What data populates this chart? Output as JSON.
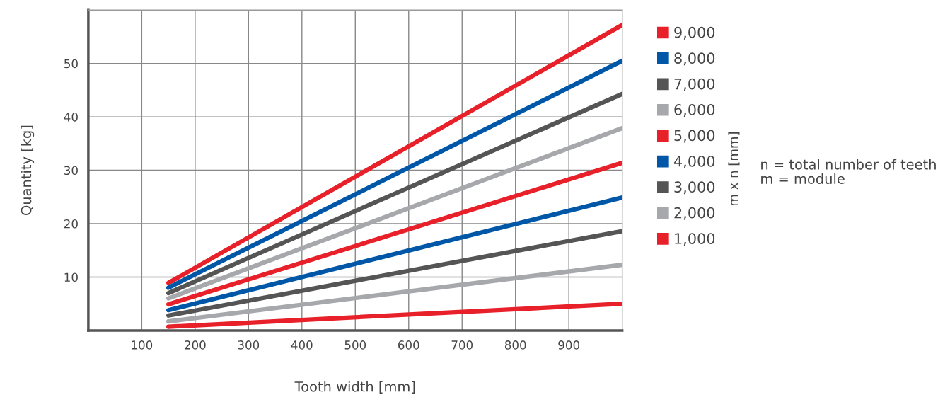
{
  "chart_data": {
    "type": "line",
    "xlabel": "Tooth width [mm]",
    "ylabel": "Quantity [kg]",
    "legend_title": "m x n [mm]",
    "x": [
      150,
      1000
    ],
    "series": [
      {
        "name": "9,000",
        "color": "#e8202a",
        "values": [
          8.9,
          57.2
        ]
      },
      {
        "name": "8,000",
        "color": "#0057a8",
        "values": [
          8.0,
          50.5
        ]
      },
      {
        "name": "7,000",
        "color": "#555555",
        "values": [
          7.0,
          44.3
        ]
      },
      {
        "name": "6,000",
        "color": "#a7a8ac",
        "values": [
          6.0,
          37.9
        ]
      },
      {
        "name": "5,000",
        "color": "#e8202a",
        "values": [
          4.9,
          31.4
        ]
      },
      {
        "name": "4,000",
        "color": "#0057a8",
        "values": [
          3.8,
          24.9
        ]
      },
      {
        "name": "3,000",
        "color": "#555555",
        "values": [
          2.8,
          18.6
        ]
      },
      {
        "name": "2,000",
        "color": "#a7a8ac",
        "values": [
          1.7,
          12.3
        ]
      },
      {
        "name": "1,000",
        "color": "#e8202a",
        "values": [
          0.7,
          5.0
        ]
      }
    ],
    "xlim": [
      0,
      1000
    ],
    "ylim": [
      0,
      60
    ],
    "xticks": [
      100,
      200,
      300,
      400,
      500,
      600,
      700,
      800,
      900
    ],
    "yticks": [
      10,
      20,
      30,
      40,
      50
    ],
    "grid": true,
    "legend": "right",
    "marker": "none",
    "line_style": "solid",
    "annotations": [
      "n = total number of teeth\nm = module"
    ]
  }
}
